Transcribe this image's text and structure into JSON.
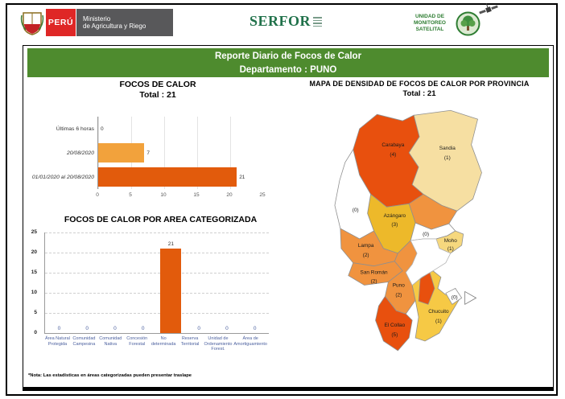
{
  "header": {
    "peru_label": "PERÚ",
    "ministry_line1": "Ministerio",
    "ministry_line2": "de Agricultura y Riego",
    "serfor_label": "SERFOR",
    "unit_line1": "UNIDAD DE",
    "unit_line2": "MONITOREO",
    "unit_line3": "SATELITAL"
  },
  "title_bar": {
    "line1": "Reporte Diario de Focos de Calor",
    "line2": "Departamento : PUNO",
    "bg_color": "#4e8b2e"
  },
  "chart_data": [
    {
      "type": "bar",
      "orientation": "horizontal",
      "title": "FOCOS DE CALOR",
      "subtitle": "Total : 21",
      "categories": [
        "Últimas 6 horas",
        "20/08/2020",
        "01/01/2020 al 20/08/2020"
      ],
      "values": [
        0,
        7,
        21
      ],
      "colors": [
        "#f2a23c",
        "#f2a23c",
        "#e25b0c"
      ],
      "xlim": [
        0,
        25
      ],
      "x_ticks": [
        0,
        5,
        10,
        15,
        20,
        25
      ],
      "grid": true
    },
    {
      "type": "bar",
      "orientation": "vertical",
      "title": "FOCOS DE CALOR POR AREA CATEGORIZADA",
      "categories": [
        "Área Natural Protegida",
        "Comunidad Campesina",
        "Comunidad Nativa",
        "Concesión Forestal",
        "No determinada",
        "Reserva Territorial",
        "Unidad de Ordenamiento Forest.",
        "Área de Amortiguamiento"
      ],
      "values": [
        0,
        0,
        0,
        0,
        21,
        0,
        0,
        0
      ],
      "bar_color": "#e25b0c",
      "zero_label_color": "#4a5f9e",
      "ylim": [
        0,
        25
      ],
      "y_ticks": [
        0,
        5,
        10,
        15,
        20,
        25
      ],
      "grid": true
    }
  ],
  "map": {
    "title": "MAPA DE DENSIDAD DE FOCOS DE CALOR POR PROVINCIA",
    "subtitle": "Total : 21",
    "provinces": [
      {
        "name": "Carabaya",
        "count_label": "(4)",
        "color": "#e8500e"
      },
      {
        "name": "Sandia",
        "count_label": "(1)",
        "color": "#f6dfa2"
      },
      {
        "name": "",
        "count_label": "",
        "color": "#f0933f"
      },
      {
        "name": "Azángaro",
        "count_label": "(3)",
        "color": "#edb92a"
      },
      {
        "name": "",
        "count_label": "(0)",
        "color": "#ffffff"
      },
      {
        "name": "",
        "count_label": "(0)",
        "color": "#ffffff"
      },
      {
        "name": "Moho",
        "count_label": "(1)",
        "color": "#f6d87e"
      },
      {
        "name": "Lampa",
        "count_label": "(2)",
        "color": "#f0933f"
      },
      {
        "name": "San Román",
        "count_label": "(2)",
        "color": "#f0933f"
      },
      {
        "name": "Puno",
        "count_label": "(2)",
        "color": "#f0933f"
      },
      {
        "name": "El Collao",
        "count_label": "(5)",
        "color": "#e8500e"
      },
      {
        "name": "Chucuito",
        "count_label": "(1)",
        "color": "#f6c945"
      },
      {
        "name": "",
        "count_label": "(0)",
        "color": "#ffffff"
      }
    ]
  },
  "footer": {
    "note": "*Nota: Las estadísticas en áreas categorizadas pueden presentar traslape"
  }
}
